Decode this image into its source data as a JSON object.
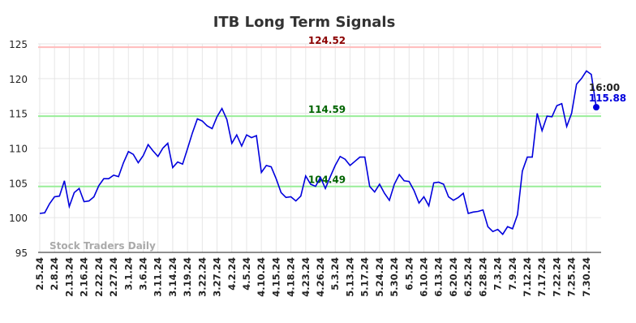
{
  "chart_data": {
    "type": "line",
    "title": "ITB Long Term Signals",
    "watermark": "Stock Traders Daily",
    "categories": [
      "2.5.24",
      null,
      null,
      "2.8.24",
      null,
      null,
      "2.13.24",
      null,
      null,
      "2.16.24",
      null,
      null,
      "2.22.24",
      null,
      null,
      "2.27.24",
      null,
      null,
      "3.1.24",
      null,
      null,
      "3.6.24",
      null,
      null,
      "3.11.24",
      null,
      null,
      "3.14.24",
      null,
      null,
      "3.19.24",
      null,
      null,
      "3.22.24",
      null,
      null,
      "3.27.24",
      null,
      null,
      "4.2.24",
      null,
      null,
      "4.5.24",
      null,
      null,
      "4.10.24",
      null,
      null,
      "4.15.24",
      null,
      null,
      "4.18.24",
      null,
      null,
      "4.23.24",
      null,
      null,
      "4.26.24",
      null,
      null,
      "5.3.24",
      null,
      null,
      "5.13.24",
      null,
      null,
      "5.17.24",
      null,
      null,
      "5.24.24",
      null,
      null,
      "5.30.24",
      null,
      null,
      "6.5.24",
      null,
      null,
      "6.10.24",
      null,
      null,
      "6.13.24",
      null,
      null,
      "6.20.24",
      null,
      null,
      "6.25.24",
      null,
      null,
      "6.28.24",
      null,
      null,
      "7.3.24",
      null,
      null,
      "7.9.24",
      null,
      null,
      "7.12.24",
      null,
      null,
      "7.17.24",
      null,
      null,
      "7.22.24",
      null,
      null,
      "7.25.24",
      null,
      null,
      "7.30.24",
      null,
      null
    ],
    "values": [
      100.6,
      100.7,
      102,
      103,
      103.1,
      105.3,
      101.6,
      103.6,
      104.2,
      102.3,
      102.4,
      103,
      104.6,
      105.6,
      105.6,
      106.1,
      105.9,
      107.9,
      109.5,
      109.1,
      107.9,
      108.9,
      110.5,
      109.6,
      108.8,
      110,
      110.7,
      107.2,
      108,
      107.7,
      109.9,
      112.2,
      114.2,
      113.9,
      113.2,
      112.8,
      114.5,
      115.7,
      114.1,
      110.7,
      111.9,
      110.3,
      111.9,
      111.5,
      111.8,
      106.5,
      107.5,
      107.3,
      105.6,
      103.6,
      102.9,
      103,
      102.4,
      103.1,
      106,
      104.8,
      104.5,
      105.8,
      104.2,
      105.9,
      107.5,
      108.8,
      108.4,
      107.5,
      108.1,
      108.7,
      108.7,
      104.5,
      103.7,
      104.8,
      103.5,
      102.5,
      104.8,
      106.2,
      105.3,
      105.2,
      103.9,
      102.1,
      103,
      101.7,
      105,
      105.1,
      104.8,
      103,
      102.5,
      102.9,
      103.5,
      100.6,
      100.8,
      100.9,
      101.1,
      98.7,
      98,
      98.3,
      97.6,
      98.7,
      98.4,
      100.4,
      106.7,
      108.7,
      108.7,
      115,
      112.5,
      114.6,
      114.5,
      116.1,
      116.4,
      113.1,
      115,
      119.2,
      120,
      121.1,
      120.6,
      115.88
    ],
    "color": "#0000dd",
    "last_time": "16:00",
    "hlines": [
      {
        "value": 124.52,
        "color": "#ffbbbb",
        "label_color": "#8b0000"
      },
      {
        "value": 114.59,
        "color": "#99ee99",
        "label_color": "#006400"
      },
      {
        "value": 104.49,
        "color": "#99ee99",
        "label_color": "#006400"
      }
    ],
    "ylim": [
      95,
      125
    ],
    "yticks": [
      95,
      100,
      105,
      110,
      115,
      120,
      125
    ],
    "grid": true
  }
}
